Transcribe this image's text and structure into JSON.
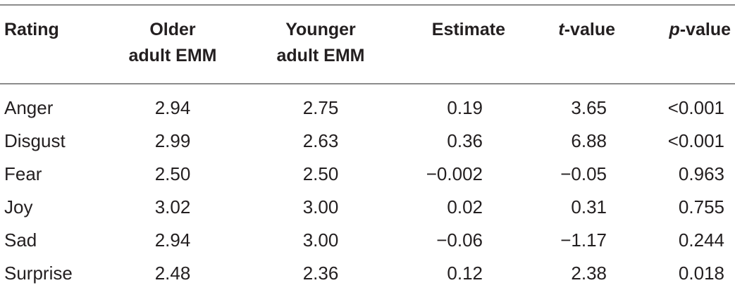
{
  "table": {
    "headers": {
      "rating": "Rating",
      "older_line1": "Older",
      "older_line2": "adult EMM",
      "younger_line1": "Younger",
      "younger_line2": "adult EMM",
      "estimate": "Estimate",
      "t_italic": "t",
      "t_rest": "-value",
      "p_italic": "p",
      "p_rest": "-value"
    },
    "rows": [
      {
        "rating": "Anger",
        "older": "2.94",
        "younger": "2.75",
        "estimate": "0.19",
        "t": "3.65",
        "p": "<0.001"
      },
      {
        "rating": "Disgust",
        "older": "2.99",
        "younger": "2.63",
        "estimate": "0.36",
        "t": "6.88",
        "p": "<0.001"
      },
      {
        "rating": "Fear",
        "older": "2.50",
        "younger": "2.50",
        "estimate": "−0.002",
        "t": "−0.05",
        "p": "0.963"
      },
      {
        "rating": "Joy",
        "older": "3.02",
        "younger": "3.00",
        "estimate": "0.02",
        "t": "0.31",
        "p": "0.755"
      },
      {
        "rating": "Sad",
        "older": "2.94",
        "younger": "3.00",
        "estimate": "−0.06",
        "t": "−1.17",
        "p": "0.244"
      },
      {
        "rating": "Surprise",
        "older": "2.48",
        "younger": "2.36",
        "estimate": "0.12",
        "t": "2.38",
        "p": "0.018"
      }
    ]
  }
}
